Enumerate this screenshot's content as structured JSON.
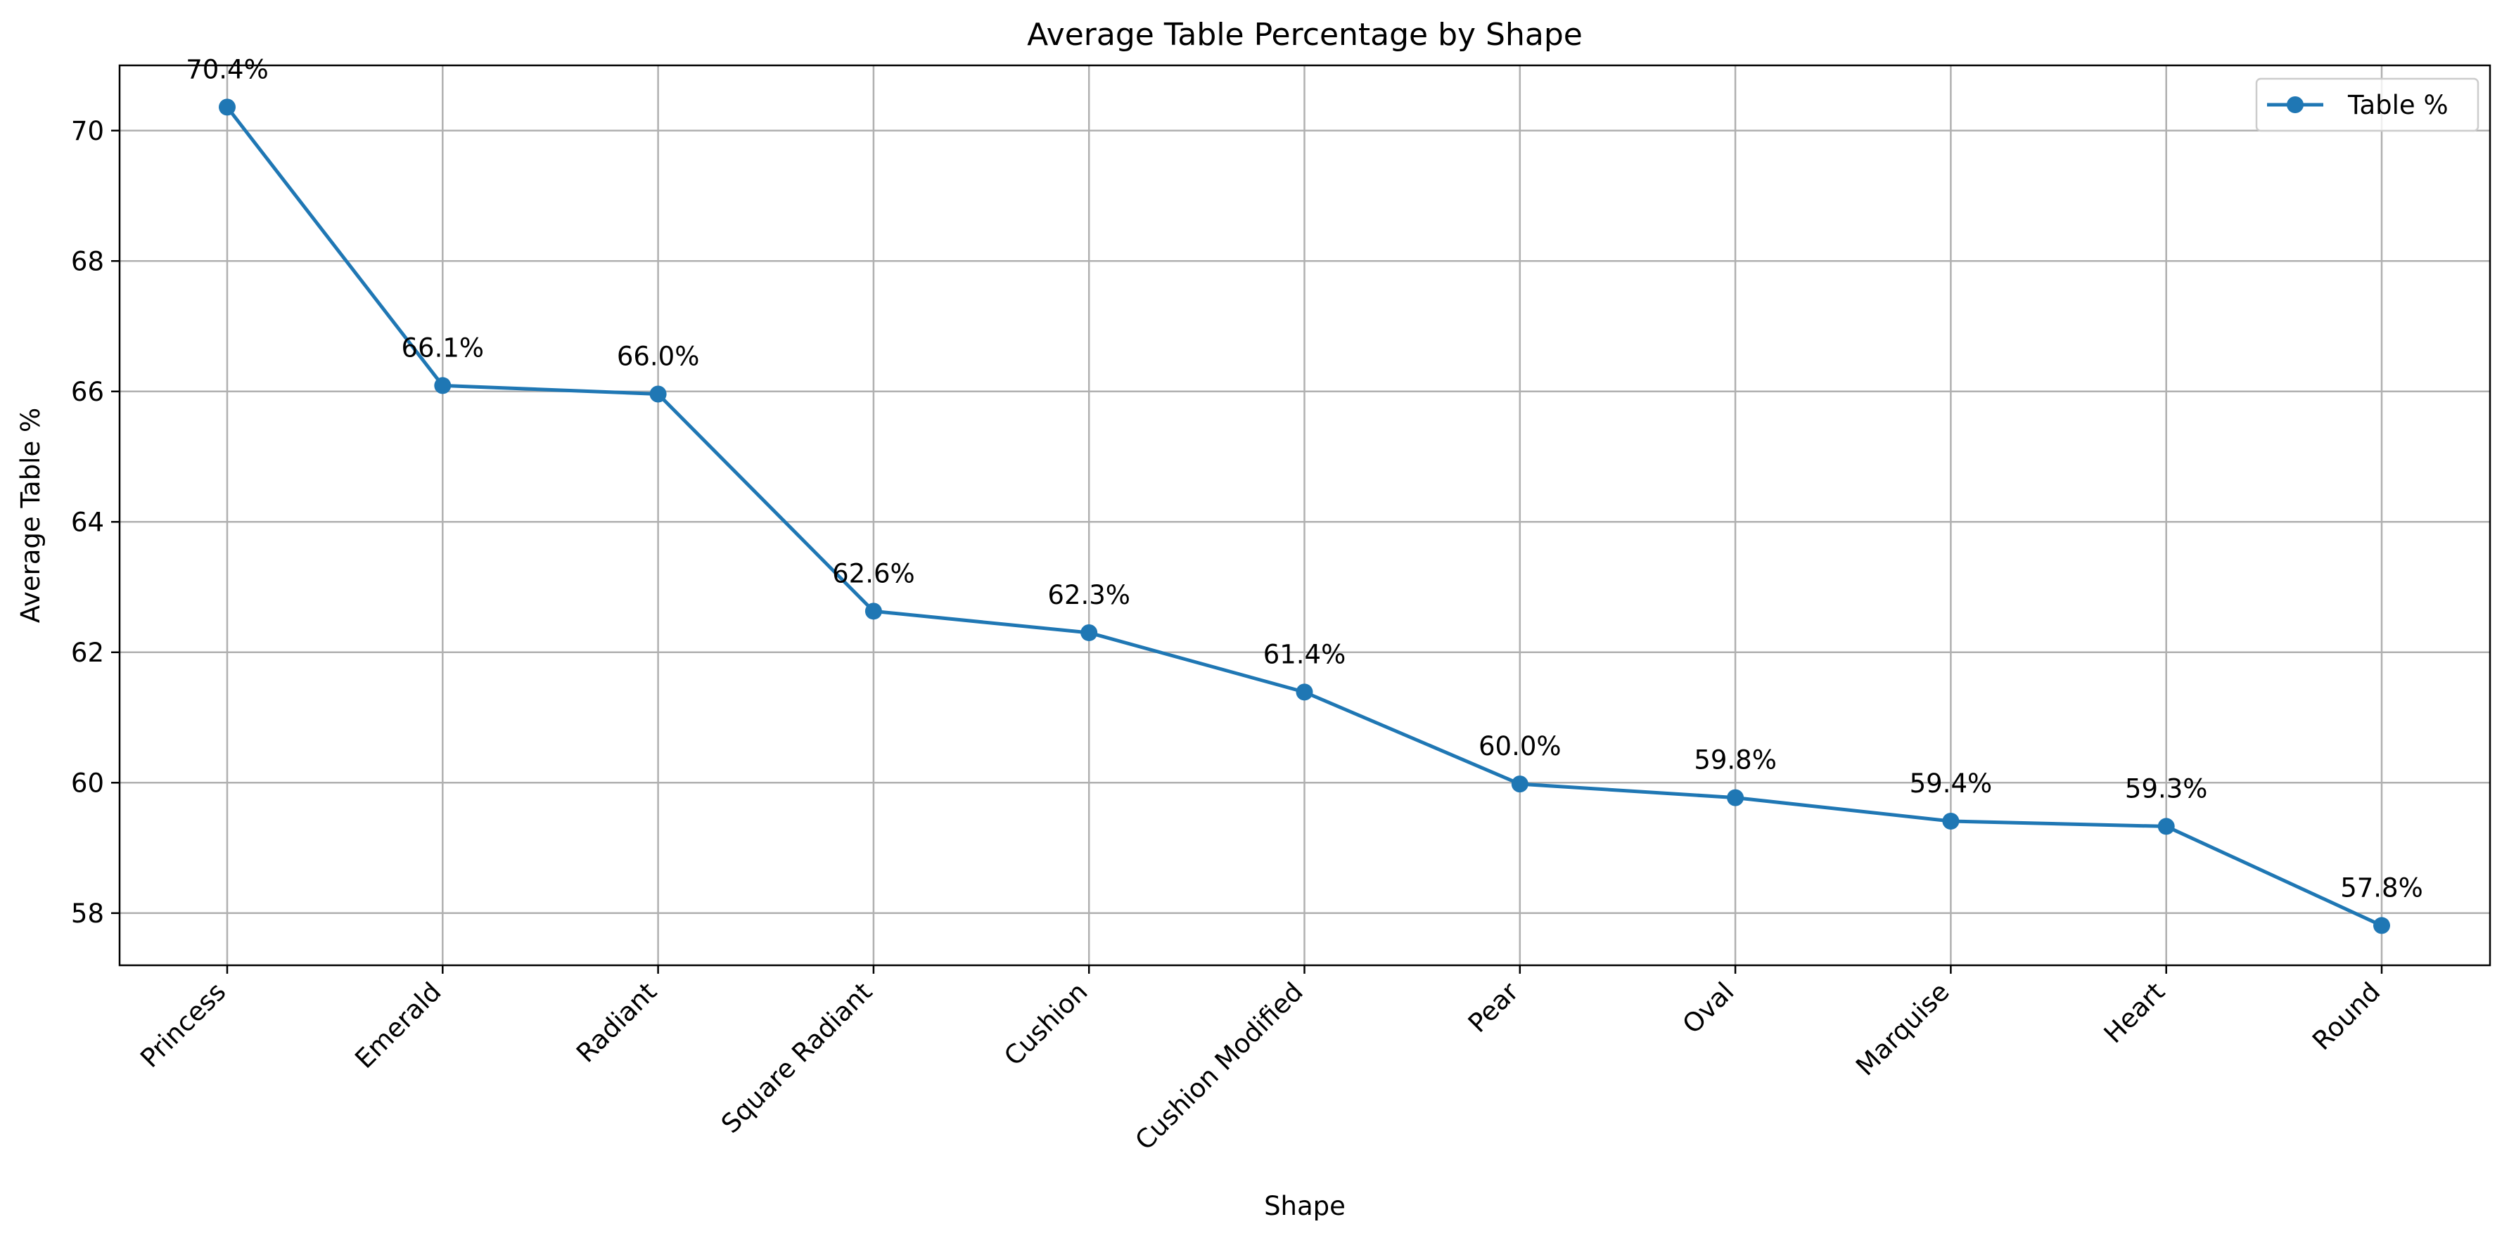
{
  "chart_data": {
    "type": "line",
    "title": "Average Table Percentage by Shape",
    "xlabel": "Shape",
    "ylabel": "Average Table %",
    "categories": [
      "Princess",
      "Emerald",
      "Radiant",
      "Square Radiant",
      "Cushion",
      "Cushion Modified",
      "Pear",
      "Oval",
      "Marquise",
      "Heart",
      "Round"
    ],
    "series": [
      {
        "name": "Table %",
        "color": "#1f77b4",
        "values": [
          70.36,
          66.09,
          65.96,
          62.63,
          62.3,
          61.39,
          59.98,
          59.77,
          59.41,
          59.33,
          57.81
        ],
        "labels": [
          "70.4%",
          "66.1%",
          "66.0%",
          "62.6%",
          "62.3%",
          "61.4%",
          "60.0%",
          "59.8%",
          "59.4%",
          "59.3%",
          "57.8%"
        ]
      }
    ],
    "ylim": [
      57.2,
      71.0
    ],
    "yticks": [
      58,
      60,
      62,
      64,
      66,
      68,
      70
    ],
    "grid": true,
    "legend_position": "top-right"
  }
}
